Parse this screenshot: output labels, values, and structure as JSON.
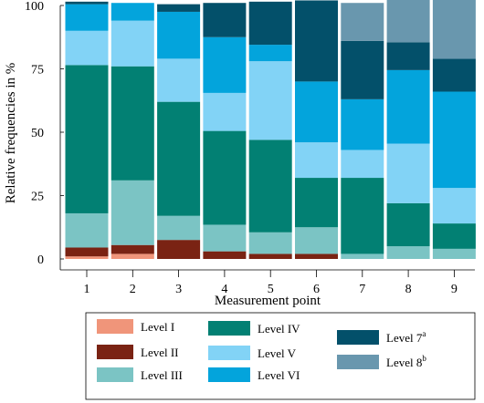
{
  "chart_data": {
    "type": "bar",
    "stacked": true,
    "xlabel": "Measurement point",
    "ylabel": "Relative frequencies in %",
    "ylim": [
      0,
      100
    ],
    "yticks": [
      0,
      25,
      50,
      75,
      100
    ],
    "categories": [
      "1",
      "2",
      "3",
      "4",
      "5",
      "6",
      "7",
      "8",
      "9"
    ],
    "series": [
      {
        "name": "Level I",
        "superscript": "",
        "color": "#f0957a",
        "values": [
          1,
          2,
          0,
          0,
          0,
          0,
          0,
          0,
          0
        ]
      },
      {
        "name": "Level II",
        "superscript": "",
        "color": "#7a2313",
        "values": [
          3.5,
          3.5,
          7.5,
          3,
          2,
          2,
          0,
          0,
          0
        ]
      },
      {
        "name": "Level III",
        "superscript": "",
        "color": "#7bc4c4",
        "values": [
          13.5,
          25.5,
          9.5,
          10.5,
          8.5,
          10.5,
          2,
          5,
          4
        ]
      },
      {
        "name": "Level IV",
        "superscript": "",
        "color": "#028073",
        "values": [
          58.5,
          45,
          45,
          37,
          36.5,
          19.5,
          30,
          17,
          10
        ]
      },
      {
        "name": "Level V",
        "superscript": "",
        "color": "#82d3f6",
        "values": [
          13.5,
          18,
          17,
          15,
          31,
          14,
          11,
          23.5,
          14
        ]
      },
      {
        "name": "Level VI",
        "superscript": "",
        "color": "#03a4dc",
        "values": [
          10.5,
          7,
          18.5,
          22,
          6.5,
          24,
          20,
          29,
          38
        ]
      },
      {
        "name": "Level 7",
        "superscript": "a",
        "color": "#03506a",
        "values": [
          1,
          0,
          3,
          13.5,
          17,
          32,
          23,
          11,
          13
        ]
      },
      {
        "name": "Level 8",
        "superscript": "b",
        "color": "#6997ae",
        "values": [
          0,
          0,
          0,
          0,
          0,
          0,
          15,
          18,
          24
        ]
      }
    ],
    "legend_position": "bottom",
    "legend_order": [
      [
        "Level I",
        "Level II",
        "Level III"
      ],
      [
        "Level IV",
        "Level V",
        "Level VI"
      ],
      [
        "Level 7",
        "Level 8"
      ]
    ]
  }
}
